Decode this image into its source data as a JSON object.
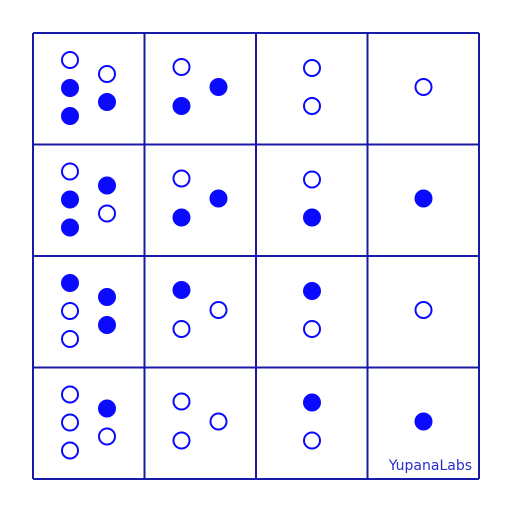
{
  "brand": "YupanaLabs",
  "colors": {
    "ink": "#0a0aff",
    "grid": "#1a1aa8",
    "background": "#ffffff"
  },
  "rows": [
    [
      {
        "capacity": 5,
        "pattern": [
          [
            0,
            1,
            1
          ],
          [
            0,
            1
          ]
        ]
      },
      {
        "capacity": 3,
        "pattern": [
          [
            0,
            1
          ],
          [
            1
          ]
        ]
      },
      {
        "capacity": 2,
        "pattern": [
          [
            0,
            0
          ]
        ]
      },
      {
        "capacity": 1,
        "pattern": [
          [
            0
          ]
        ]
      }
    ],
    [
      {
        "capacity": 5,
        "pattern": [
          [
            0,
            1,
            1
          ],
          [
            1,
            0
          ]
        ]
      },
      {
        "capacity": 3,
        "pattern": [
          [
            0,
            1
          ],
          [
            1
          ]
        ]
      },
      {
        "capacity": 2,
        "pattern": [
          [
            0,
            1
          ]
        ]
      },
      {
        "capacity": 1,
        "pattern": [
          [
            1
          ]
        ]
      }
    ],
    [
      {
        "capacity": 5,
        "pattern": [
          [
            1,
            0,
            0
          ],
          [
            1,
            1
          ]
        ]
      },
      {
        "capacity": 3,
        "pattern": [
          [
            1,
            0
          ],
          [
            0
          ]
        ]
      },
      {
        "capacity": 2,
        "pattern": [
          [
            1,
            0
          ]
        ]
      },
      {
        "capacity": 1,
        "pattern": [
          [
            0
          ]
        ]
      }
    ],
    [
      {
        "capacity": 5,
        "pattern": [
          [
            0,
            0,
            0
          ],
          [
            1,
            0
          ]
        ]
      },
      {
        "capacity": 3,
        "pattern": [
          [
            0,
            0
          ],
          [
            0
          ]
        ]
      },
      {
        "capacity": 2,
        "pattern": [
          [
            1,
            0
          ]
        ]
      },
      {
        "capacity": 1,
        "pattern": [
          [
            1
          ]
        ]
      }
    ]
  ]
}
